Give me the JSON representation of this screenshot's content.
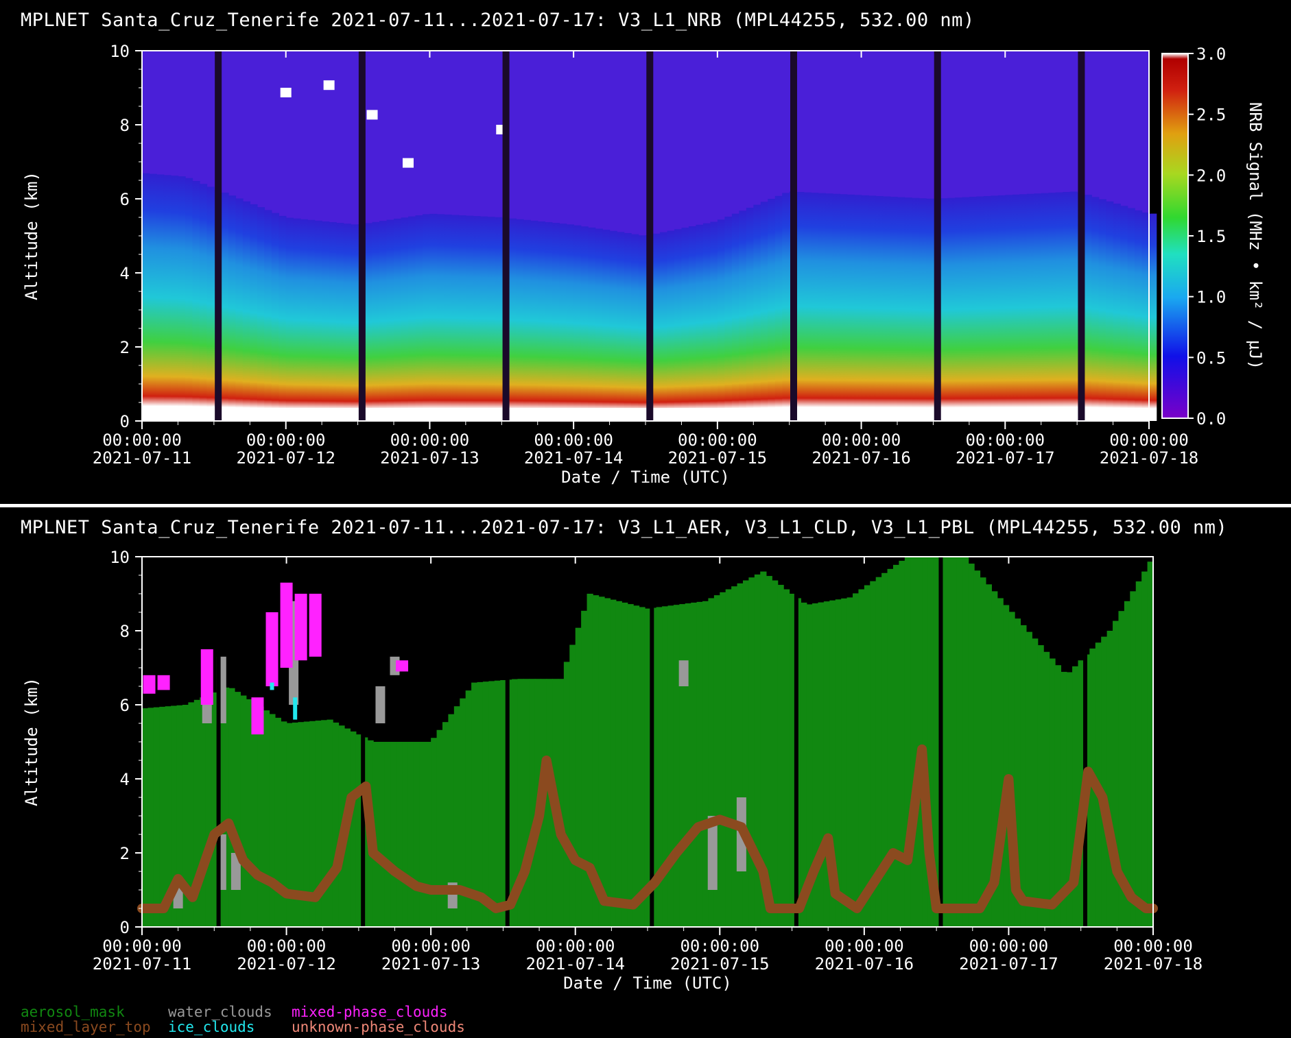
{
  "top_panel": {
    "title": "MPLNET Santa_Cruz_Tenerife 2021-07-11...2021-07-17:  V3_L1_NRB  (MPL44255, 532.00 nm)"
  },
  "bottom_panel": {
    "title": "MPLNET Santa_Cruz_Tenerife 2021-07-11...2021-07-17:  V3_L1_AER, V3_L1_CLD, V3_L1_PBL  (MPL44255, 532.00 nm)"
  },
  "chart_data": [
    {
      "type": "heatmap",
      "title": "MPLNET Santa_Cruz_Tenerife 2021-07-11...2021-07-17:  V3_L1_NRB  (MPL44255, 532.00 nm)",
      "xlabel": "Date / Time (UTC)",
      "ylabel": "Altitude (km)",
      "x_ticks": [
        {
          "time": "00:00:00",
          "date": "2021-07-11"
        },
        {
          "time": "00:00:00",
          "date": "2021-07-12"
        },
        {
          "time": "00:00:00",
          "date": "2021-07-13"
        },
        {
          "time": "00:00:00",
          "date": "2021-07-14"
        },
        {
          "time": "00:00:00",
          "date": "2021-07-15"
        },
        {
          "time": "00:00:00",
          "date": "2021-07-16"
        },
        {
          "time": "00:00:00",
          "date": "2021-07-17"
        },
        {
          "time": "00:00:00",
          "date": "2021-07-18"
        }
      ],
      "y_ticks": [
        "0",
        "2",
        "4",
        "6",
        "8",
        "10"
      ],
      "ylim": [
        0,
        10
      ],
      "colorbar": {
        "label": "NRB Signal (MHz • km² / μJ)",
        "ticks": [
          "0.0",
          "0.5",
          "1.0",
          "1.5",
          "2.0",
          "2.5",
          "3.0"
        ],
        "range": [
          0,
          3
        ]
      },
      "data_gaps_day": [
        0.53,
        1.53,
        2.53,
        3.53,
        4.53,
        5.53,
        6.53
      ],
      "aerosol_layer_top_km": [
        [
          0.0,
          6.7
        ],
        [
          0.3,
          6.6
        ],
        [
          1.0,
          5.5
        ],
        [
          1.5,
          5.3
        ],
        [
          2.0,
          5.6
        ],
        [
          2.5,
          5.5
        ],
        [
          3.0,
          5.3
        ],
        [
          3.5,
          5.0
        ],
        [
          4.0,
          5.4
        ],
        [
          4.5,
          6.2
        ],
        [
          5.0,
          6.1
        ],
        [
          5.5,
          6.0
        ],
        [
          6.0,
          6.1
        ],
        [
          6.5,
          6.2
        ],
        [
          7.0,
          5.6
        ]
      ],
      "cloud_top_km": [
        [
          1.0,
          9.0
        ],
        [
          1.3,
          9.2
        ],
        [
          1.6,
          8.4
        ],
        [
          1.85,
          7.1
        ],
        [
          2.5,
          8.0
        ]
      ]
    },
    {
      "type": "heatmap",
      "title": "MPLNET Santa_Cruz_Tenerife 2021-07-11...2021-07-17:  V3_L1_AER, V3_L1_CLD, V3_L1_PBL  (MPL44255, 532.00 nm)",
      "xlabel": "Date / Time (UTC)",
      "ylabel": "Altitude (km)",
      "x_ticks": [
        {
          "time": "00:00:00",
          "date": "2021-07-11"
        },
        {
          "time": "00:00:00",
          "date": "2021-07-12"
        },
        {
          "time": "00:00:00",
          "date": "2021-07-13"
        },
        {
          "time": "00:00:00",
          "date": "2021-07-14"
        },
        {
          "time": "00:00:00",
          "date": "2021-07-15"
        },
        {
          "time": "00:00:00",
          "date": "2021-07-16"
        },
        {
          "time": "00:00:00",
          "date": "2021-07-17"
        },
        {
          "time": "00:00:00",
          "date": "2021-07-18"
        }
      ],
      "y_ticks": [
        "0",
        "2",
        "4",
        "6",
        "8",
        "10"
      ],
      "ylim": [
        0,
        10
      ],
      "legend": [
        {
          "name": "aerosol_mask",
          "color": "#118811"
        },
        {
          "name": "water_clouds",
          "color": "#999999"
        },
        {
          "name": "mixed-phase_clouds",
          "color": "#ff22ff"
        },
        {
          "name": "mixed_layer_top",
          "color": "#8b4a1f"
        },
        {
          "name": "ice_clouds",
          "color": "#22e8ee"
        },
        {
          "name": "unknown-phase_clouds",
          "color": "#f08878"
        }
      ],
      "aerosol_mask_top_km": [
        [
          0.0,
          5.9
        ],
        [
          0.3,
          6.0
        ],
        [
          0.6,
          6.5
        ],
        [
          1.0,
          5.5
        ],
        [
          1.3,
          5.6
        ],
        [
          1.6,
          5.0
        ],
        [
          2.0,
          5.0
        ],
        [
          2.3,
          6.6
        ],
        [
          2.6,
          6.7
        ],
        [
          2.9,
          6.7
        ],
        [
          3.1,
          9.0
        ],
        [
          3.5,
          8.6
        ],
        [
          3.9,
          8.8
        ],
        [
          4.3,
          9.6
        ],
        [
          4.6,
          8.7
        ],
        [
          4.9,
          8.9
        ],
        [
          5.3,
          10.0
        ],
        [
          5.7,
          10.0
        ],
        [
          6.0,
          8.6
        ],
        [
          6.4,
          6.8
        ],
        [
          6.7,
          8.0
        ],
        [
          7.0,
          10.0
        ]
      ],
      "mixed_layer_top_km": [
        [
          0.0,
          0.5
        ],
        [
          0.15,
          0.5
        ],
        [
          0.25,
          1.3
        ],
        [
          0.35,
          0.8
        ],
        [
          0.5,
          2.5
        ],
        [
          0.6,
          2.8
        ],
        [
          0.7,
          1.8
        ],
        [
          0.8,
          1.4
        ],
        [
          0.9,
          1.2
        ],
        [
          1.0,
          0.9
        ],
        [
          1.2,
          0.8
        ],
        [
          1.35,
          1.6
        ],
        [
          1.45,
          3.5
        ],
        [
          1.55,
          3.8
        ],
        [
          1.6,
          2.0
        ],
        [
          1.75,
          1.5
        ],
        [
          1.9,
          1.1
        ],
        [
          2.0,
          1.0
        ],
        [
          2.2,
          1.0
        ],
        [
          2.35,
          0.8
        ],
        [
          2.45,
          0.5
        ],
        [
          2.55,
          0.6
        ],
        [
          2.65,
          1.5
        ],
        [
          2.75,
          3.0
        ],
        [
          2.8,
          4.5
        ],
        [
          2.85,
          3.5
        ],
        [
          2.9,
          2.5
        ],
        [
          3.0,
          1.8
        ],
        [
          3.1,
          1.6
        ],
        [
          3.2,
          0.7
        ],
        [
          3.4,
          0.6
        ],
        [
          3.55,
          1.2
        ],
        [
          3.7,
          2.0
        ],
        [
          3.85,
          2.7
        ],
        [
          4.0,
          2.9
        ],
        [
          4.15,
          2.7
        ],
        [
          4.3,
          1.5
        ],
        [
          4.35,
          0.5
        ],
        [
          4.55,
          0.5
        ],
        [
          4.65,
          1.5
        ],
        [
          4.75,
          2.4
        ],
        [
          4.8,
          0.9
        ],
        [
          4.95,
          0.5
        ],
        [
          5.1,
          1.4
        ],
        [
          5.2,
          2.0
        ],
        [
          5.3,
          1.8
        ],
        [
          5.4,
          4.8
        ],
        [
          5.45,
          2.0
        ],
        [
          5.5,
          0.5
        ],
        [
          5.8,
          0.5
        ],
        [
          5.9,
          1.2
        ],
        [
          6.0,
          4.0
        ],
        [
          6.05,
          1.0
        ],
        [
          6.1,
          0.7
        ],
        [
          6.3,
          0.6
        ],
        [
          6.45,
          1.2
        ],
        [
          6.55,
          4.2
        ],
        [
          6.65,
          3.5
        ],
        [
          6.75,
          1.5
        ],
        [
          6.85,
          0.8
        ],
        [
          6.95,
          0.5
        ],
        [
          7.0,
          0.5
        ]
      ],
      "water_cloud_patches": [
        [
          0.25,
          0.5,
          1.2
        ],
        [
          0.55,
          1.0,
          2.5
        ],
        [
          0.65,
          1.0,
          2.0
        ],
        [
          2.15,
          0.5,
          1.2
        ],
        [
          3.95,
          1.0,
          3.0
        ],
        [
          4.15,
          1.5,
          3.5
        ],
        [
          0.45,
          5.5,
          7.0
        ],
        [
          0.55,
          5.5,
          7.3
        ],
        [
          1.05,
          6.0,
          8.8
        ],
        [
          1.65,
          5.5,
          6.5
        ],
        [
          1.75,
          6.8,
          7.3
        ],
        [
          3.75,
          6.5,
          7.2
        ]
      ],
      "mixed_phase_cloud_patches": [
        [
          0.05,
          6.3,
          6.8
        ],
        [
          0.15,
          6.4,
          6.8
        ],
        [
          0.45,
          6.0,
          7.5
        ],
        [
          0.8,
          5.2,
          6.2
        ],
        [
          0.9,
          6.5,
          8.5
        ],
        [
          1.0,
          7.0,
          9.3
        ],
        [
          1.1,
          7.2,
          9.0
        ],
        [
          1.2,
          7.3,
          9.0
        ],
        [
          1.8,
          6.9,
          7.2
        ]
      ],
      "ice_cloud_patches": [
        [
          1.06,
          5.6,
          6.2
        ],
        [
          0.9,
          6.4,
          6.6
        ]
      ]
    }
  ]
}
